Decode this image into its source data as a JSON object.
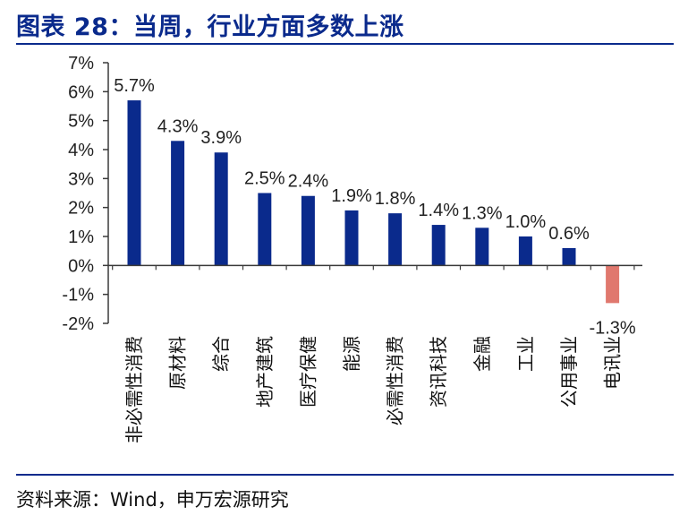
{
  "title": "图表 28：当周，行业方面多数上涨",
  "source": "资料来源：Wind，申万宏源研究",
  "colors": {
    "title": "#0a2a8c",
    "positive_bar": "#0a2a8c",
    "negative_bar": "#e0786e",
    "axis": "#3a3a3a"
  },
  "chart_data": {
    "type": "bar",
    "categories": [
      "非必需性消费",
      "原材料",
      "综合",
      "地产建筑",
      "医疗保健",
      "能源",
      "必需性消费",
      "资讯科技",
      "金融",
      "工业",
      "公用事业",
      "电讯业"
    ],
    "values": [
      5.7,
      4.3,
      3.9,
      2.5,
      2.4,
      1.9,
      1.8,
      1.4,
      1.3,
      1.0,
      0.6,
      -1.3
    ],
    "data_labels": [
      "5.7%",
      "4.3%",
      "3.9%",
      "2.5%",
      "2.4%",
      "1.9%",
      "1.8%",
      "1.4%",
      "1.3%",
      "1.0%",
      "0.6%",
      "-1.3%"
    ],
    "yticks": [
      7,
      6,
      5,
      4,
      3,
      2,
      1,
      0,
      -1,
      -2
    ],
    "ytick_labels": [
      "7%",
      "6%",
      "5%",
      "4%",
      "3%",
      "2%",
      "1%",
      "0%",
      "-1%",
      "-2%"
    ],
    "ylim": [
      -2,
      7
    ],
    "xlabel": "",
    "ylabel": "",
    "legend": false,
    "grid": false
  }
}
